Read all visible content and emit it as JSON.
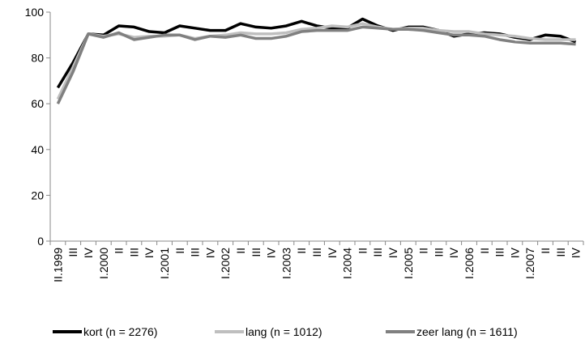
{
  "chart_data": {
    "type": "line",
    "categories": [
      "II.1999",
      "III",
      "IV",
      "I.2000",
      "II",
      "III",
      "IV",
      "I.2001",
      "II",
      "III",
      "IV",
      "I.2002",
      "II",
      "III",
      "IV",
      "I.2003",
      "II",
      "III",
      "IV",
      "I.2004",
      "II",
      "III",
      "IV",
      "I.2005",
      "II",
      "III",
      "IV",
      "I.2006",
      "II",
      "III",
      "IV",
      "I.2007",
      "II",
      "III",
      "IV"
    ],
    "series": [
      {
        "name": "kort (n = 2276)",
        "color": "#000000",
        "values": [
          67,
          78,
          90.5,
          90,
          94,
          93.5,
          91.5,
          91,
          94,
          93,
          92,
          92,
          95,
          93.5,
          93,
          94,
          96,
          94,
          93,
          93,
          97,
          94,
          92,
          93.5,
          93.5,
          92,
          89.5,
          90.5,
          91,
          90.5,
          89,
          88,
          90,
          89.5,
          87
        ]
      },
      {
        "name": "lang (n = 1012)",
        "color": "#bfbfbf",
        "values": [
          62,
          76,
          90.5,
          89.5,
          90.5,
          89,
          89.5,
          89.5,
          90,
          88.5,
          89.5,
          90,
          91,
          90.5,
          90.5,
          91,
          92.5,
          93,
          94,
          93.5,
          95,
          93.5,
          92.5,
          93,
          93,
          92,
          91.5,
          91.5,
          90.5,
          90,
          89.5,
          88.5,
          88,
          88,
          88
        ]
      },
      {
        "name": "zeer lang (n = 1611)",
        "color": "#808080",
        "values": [
          60,
          74,
          90.5,
          89,
          91,
          88,
          89,
          90,
          90,
          88,
          89.5,
          89,
          90,
          88.5,
          88.5,
          89.5,
          91.5,
          92,
          92,
          92,
          93.5,
          93,
          92.5,
          92.5,
          92,
          91,
          90,
          90,
          89.5,
          88,
          87,
          86.5,
          86.5,
          86.5,
          86
        ]
      }
    ],
    "ylim": [
      0,
      100
    ],
    "yticks": [
      0,
      20,
      40,
      60,
      80,
      100
    ],
    "grid": false,
    "legend": "bottom"
  }
}
